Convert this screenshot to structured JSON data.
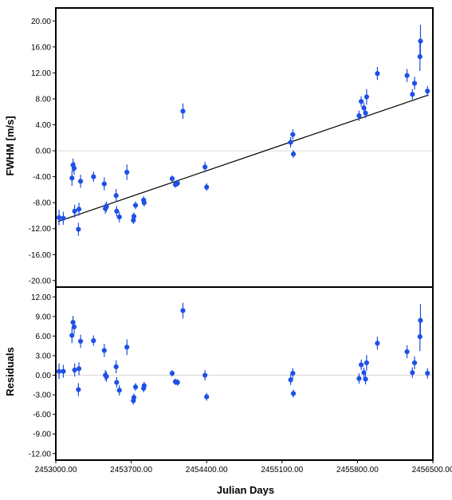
{
  "chart_data": [
    {
      "type": "scatter",
      "title": "",
      "xlabel": "",
      "ylabel": "FWHM [m/s]",
      "xlim": [
        2453000,
        2456500
      ],
      "ylim": [
        -21,
        22
      ],
      "yticks": [
        "20.00",
        "16.00",
        "12.00",
        "8.00",
        "4.00",
        "0.00",
        "-4.00",
        "-8.00",
        "-12.00",
        "-16.00",
        "-20.00"
      ],
      "ytick_values": [
        20,
        16,
        12,
        8,
        4,
        0,
        -4,
        -8,
        -12,
        -16,
        -20
      ],
      "grid": false,
      "zero_line": true,
      "fit_line": {
        "x": [
          2453020,
          2456460
        ],
        "y": [
          -10.9,
          8.6
        ]
      },
      "colors": {
        "points": "#1e50e6",
        "errorbars": "#1e4fe0",
        "fit": "#000000"
      },
      "points": [
        {
          "x": 2453030,
          "y": -10.3,
          "err": 1.2
        },
        {
          "x": 2453070,
          "y": -10.4,
          "err": 1.0
        },
        {
          "x": 2453150,
          "y": -4.2,
          "err": 1.2
        },
        {
          "x": 2453160,
          "y": -2.2,
          "err": 1.0
        },
        {
          "x": 2453170,
          "y": -2.7,
          "err": 1.0
        },
        {
          "x": 2453175,
          "y": -9.3,
          "err": 1.0
        },
        {
          "x": 2453210,
          "y": -12.1,
          "err": 1.0
        },
        {
          "x": 2453215,
          "y": -9.0,
          "err": 1.0
        },
        {
          "x": 2453230,
          "y": -4.7,
          "err": 1.0
        },
        {
          "x": 2453350,
          "y": -4.0,
          "err": 0.8
        },
        {
          "x": 2453450,
          "y": -5.1,
          "err": 1.0
        },
        {
          "x": 2453460,
          "y": -8.9,
          "err": 0.8
        },
        {
          "x": 2453470,
          "y": -8.6,
          "err": 0.8
        },
        {
          "x": 2453560,
          "y": -6.9,
          "err": 1.0
        },
        {
          "x": 2453565,
          "y": -9.3,
          "err": 0.8
        },
        {
          "x": 2453590,
          "y": -10.2,
          "err": 0.8
        },
        {
          "x": 2453660,
          "y": -3.3,
          "err": 1.2
        },
        {
          "x": 2453720,
          "y": -10.7,
          "err": 0.6
        },
        {
          "x": 2453725,
          "y": -10.1,
          "err": 0.6
        },
        {
          "x": 2453740,
          "y": -8.4,
          "err": 0.6
        },
        {
          "x": 2453815,
          "y": -7.6,
          "err": 0.6
        },
        {
          "x": 2453820,
          "y": -8.0,
          "err": 0.6
        },
        {
          "x": 2454080,
          "y": -4.3,
          "err": 0.5
        },
        {
          "x": 2454110,
          "y": -5.2,
          "err": 0.5
        },
        {
          "x": 2454130,
          "y": -5.0,
          "err": 0.5
        },
        {
          "x": 2454180,
          "y": 6.1,
          "err": 1.2
        },
        {
          "x": 2454385,
          "y": -2.5,
          "err": 0.8
        },
        {
          "x": 2454400,
          "y": -5.6,
          "err": 0.6
        },
        {
          "x": 2455180,
          "y": 1.3,
          "err": 0.8
        },
        {
          "x": 2455200,
          "y": 2.5,
          "err": 0.8
        },
        {
          "x": 2455205,
          "y": -0.5,
          "err": 0.6
        },
        {
          "x": 2455815,
          "y": 5.4,
          "err": 0.8
        },
        {
          "x": 2455835,
          "y": 7.6,
          "err": 0.8
        },
        {
          "x": 2455860,
          "y": 6.6,
          "err": 0.8
        },
        {
          "x": 2455875,
          "y": 5.8,
          "err": 0.8
        },
        {
          "x": 2455885,
          "y": 8.3,
          "err": 1.2
        },
        {
          "x": 2455985,
          "y": 11.9,
          "err": 1.0
        },
        {
          "x": 2456260,
          "y": 11.6,
          "err": 1.0
        },
        {
          "x": 2456310,
          "y": 8.7,
          "err": 0.8
        },
        {
          "x": 2456330,
          "y": 10.4,
          "err": 1.0
        },
        {
          "x": 2456380,
          "y": 14.5,
          "err": 2.2
        },
        {
          "x": 2456385,
          "y": 16.9,
          "err": 2.5
        },
        {
          "x": 2456450,
          "y": 9.2,
          "err": 0.8
        }
      ]
    },
    {
      "type": "scatter",
      "title": "",
      "xlabel": "Julian Days",
      "ylabel": "Residuals",
      "xlim": [
        2453000,
        2456500
      ],
      "ylim": [
        -13,
        13.5
      ],
      "xticks": [
        "2453000.00",
        "2453700.00",
        "2454400.00",
        "2455100.00",
        "2455800.00",
        "2456500.00"
      ],
      "xtick_values": [
        2453000,
        2453700,
        2454400,
        2455100,
        2455800,
        2456500
      ],
      "yticks": [
        "12.00",
        "9.00",
        "6.00",
        "3.00",
        "0.00",
        "-3.00",
        "-6.00",
        "-9.00",
        "-12.00"
      ],
      "ytick_values": [
        12,
        9,
        6,
        3,
        0,
        -3,
        -6,
        -9,
        -12
      ],
      "grid": false,
      "zero_line": true,
      "colors": {
        "points": "#1e50e6",
        "errorbars": "#1e4fe0"
      },
      "points": [
        {
          "x": 2453030,
          "y": 0.6,
          "err": 1.2
        },
        {
          "x": 2453070,
          "y": 0.6,
          "err": 1.0
        },
        {
          "x": 2453150,
          "y": 6.1,
          "err": 1.2
        },
        {
          "x": 2453160,
          "y": 8.1,
          "err": 1.0
        },
        {
          "x": 2453170,
          "y": 7.4,
          "err": 1.0
        },
        {
          "x": 2453175,
          "y": 0.8,
          "err": 1.0
        },
        {
          "x": 2453210,
          "y": -2.2,
          "err": 1.0
        },
        {
          "x": 2453215,
          "y": 1.0,
          "err": 1.0
        },
        {
          "x": 2453230,
          "y": 5.2,
          "err": 1.0
        },
        {
          "x": 2453350,
          "y": 5.3,
          "err": 0.8
        },
        {
          "x": 2453450,
          "y": 3.8,
          "err": 1.0
        },
        {
          "x": 2453460,
          "y": 0.0,
          "err": 0.8
        },
        {
          "x": 2453470,
          "y": -0.2,
          "err": 0.8
        },
        {
          "x": 2453560,
          "y": 1.3,
          "err": 1.0
        },
        {
          "x": 2453565,
          "y": -1.1,
          "err": 0.8
        },
        {
          "x": 2453590,
          "y": -2.3,
          "err": 0.8
        },
        {
          "x": 2453660,
          "y": 4.3,
          "err": 1.2
        },
        {
          "x": 2453720,
          "y": -3.9,
          "err": 0.6
        },
        {
          "x": 2453725,
          "y": -3.4,
          "err": 0.6
        },
        {
          "x": 2453740,
          "y": -1.8,
          "err": 0.6
        },
        {
          "x": 2453815,
          "y": -2.0,
          "err": 0.6
        },
        {
          "x": 2453820,
          "y": -1.6,
          "err": 0.6
        },
        {
          "x": 2454080,
          "y": 0.3,
          "err": 0.5
        },
        {
          "x": 2454110,
          "y": -1.0,
          "err": 0.5
        },
        {
          "x": 2454130,
          "y": -1.1,
          "err": 0.5
        },
        {
          "x": 2454180,
          "y": 9.9,
          "err": 1.2
        },
        {
          "x": 2454385,
          "y": 0.0,
          "err": 0.8
        },
        {
          "x": 2454400,
          "y": -3.3,
          "err": 0.6
        },
        {
          "x": 2455180,
          "y": -0.7,
          "err": 0.8
        },
        {
          "x": 2455200,
          "y": 0.3,
          "err": 0.8
        },
        {
          "x": 2455205,
          "y": -2.8,
          "err": 0.6
        },
        {
          "x": 2455815,
          "y": -0.5,
          "err": 0.8
        },
        {
          "x": 2455835,
          "y": 1.6,
          "err": 0.8
        },
        {
          "x": 2455860,
          "y": 0.4,
          "err": 0.8
        },
        {
          "x": 2455875,
          "y": -0.6,
          "err": 0.8
        },
        {
          "x": 2455885,
          "y": 1.9,
          "err": 1.2
        },
        {
          "x": 2455985,
          "y": 4.9,
          "err": 1.0
        },
        {
          "x": 2456260,
          "y": 3.6,
          "err": 1.0
        },
        {
          "x": 2456310,
          "y": 0.4,
          "err": 0.8
        },
        {
          "x": 2456330,
          "y": 1.9,
          "err": 1.0
        },
        {
          "x": 2456380,
          "y": 5.9,
          "err": 2.2
        },
        {
          "x": 2456385,
          "y": 8.4,
          "err": 2.5
        },
        {
          "x": 2456450,
          "y": 0.3,
          "err": 0.8
        }
      ]
    }
  ]
}
